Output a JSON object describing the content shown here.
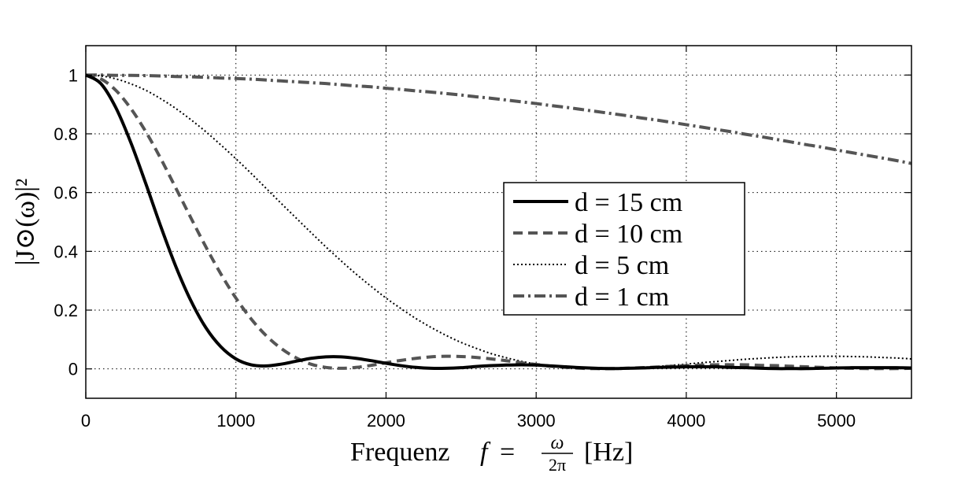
{
  "chart_data": {
    "type": "line",
    "xlabel": "Frequenz f = ω/2π [Hz]",
    "xlabel_parts": {
      "prefix": "Frequenz",
      "f": "f",
      "eq": "=",
      "num": "ω",
      "den": "2π",
      "unit": "[Hz]"
    },
    "ylabel": "|J⊙(ω)|²",
    "xlim": [
      0,
      5500
    ],
    "ylim": [
      -0.1,
      1.1
    ],
    "xticks": [
      0,
      1000,
      2000,
      3000,
      4000,
      5000
    ],
    "xtick_labels": [
      "0",
      "1000",
      "2000",
      "3000",
      "4000",
      "5000"
    ],
    "yticks": [
      0,
      0.2,
      0.4,
      0.6,
      0.8,
      1
    ],
    "ytick_labels": [
      "0",
      "0.2",
      "0.4",
      "0.6",
      "0.8",
      "1"
    ],
    "grid": true,
    "legend_position": "center-right",
    "x": [
      0,
      100,
      200,
      300,
      400,
      500,
      600,
      700,
      800,
      900,
      1000,
      1100,
      1200,
      1300,
      1400,
      1500,
      1600,
      1700,
      1800,
      1900,
      2000,
      2100,
      2200,
      2300,
      2400,
      2500,
      2600,
      2700,
      2800,
      2900,
      3000,
      3100,
      3200,
      3300,
      3400,
      3500,
      3600,
      3700,
      3800,
      3900,
      4000,
      4100,
      4200,
      4300,
      4400,
      4500,
      4600,
      4700,
      4800,
      4900,
      5000,
      5100,
      5200,
      5300,
      5400,
      5500
    ],
    "series": [
      {
        "name": "d = 15 cm",
        "style": "solid",
        "color": "#000000",
        "values": [
          1.0,
          0.971,
          0.889,
          0.77,
          0.63,
          0.484,
          0.348,
          0.232,
          0.14,
          0.075,
          0.034,
          0.014,
          0.01,
          0.016,
          0.026,
          0.036,
          0.041,
          0.041,
          0.036,
          0.028,
          0.019,
          0.011,
          0.005,
          0.002,
          0.002,
          0.004,
          0.008,
          0.011,
          0.013,
          0.014,
          0.013,
          0.01,
          0.007,
          0.004,
          0.002,
          0.001,
          0.002,
          0.003,
          0.005,
          0.006,
          0.007,
          0.007,
          0.007,
          0.005,
          0.004,
          0.002,
          0.001,
          0.001,
          0.001,
          0.002,
          0.003,
          0.004,
          0.004,
          0.004,
          0.004,
          0.003
        ]
      },
      {
        "name": "d = 10 cm",
        "style": "dashed",
        "color": "#555555",
        "values": [
          1.0,
          0.987,
          0.948,
          0.886,
          0.807,
          0.715,
          0.615,
          0.514,
          0.415,
          0.323,
          0.241,
          0.171,
          0.114,
          0.07,
          0.038,
          0.016,
          0.005,
          0.002,
          0.005,
          0.012,
          0.021,
          0.029,
          0.036,
          0.041,
          0.043,
          0.042,
          0.039,
          0.034,
          0.028,
          0.021,
          0.015,
          0.009,
          0.005,
          0.002,
          0.001,
          0.001,
          0.002,
          0.004,
          0.006,
          0.009,
          0.011,
          0.013,
          0.014,
          0.014,
          0.014,
          0.012,
          0.011,
          0.009,
          0.007,
          0.005,
          0.003,
          0.002,
          0.001,
          0.001,
          0.001,
          0.002
        ]
      },
      {
        "name": "d = 5 cm",
        "style": "dotted",
        "color": "#000000",
        "values": [
          1.0,
          0.997,
          0.987,
          0.97,
          0.948,
          0.919,
          0.886,
          0.848,
          0.807,
          0.762,
          0.715,
          0.666,
          0.615,
          0.564,
          0.514,
          0.464,
          0.415,
          0.368,
          0.323,
          0.281,
          0.241,
          0.205,
          0.171,
          0.141,
          0.114,
          0.09,
          0.07,
          0.052,
          0.038,
          0.026,
          0.016,
          0.009,
          0.005,
          0.002,
          0.001,
          0.001,
          0.002,
          0.005,
          0.008,
          0.012,
          0.016,
          0.021,
          0.025,
          0.029,
          0.033,
          0.036,
          0.039,
          0.041,
          0.042,
          0.043,
          0.043,
          0.042,
          0.041,
          0.039,
          0.037,
          0.034
        ]
      },
      {
        "name": "d = 1 cm",
        "style": "dashdot",
        "color": "#555555",
        "values": [
          1.0,
          1.0,
          0.999,
          0.999,
          0.998,
          0.997,
          0.995,
          0.994,
          0.992,
          0.99,
          0.988,
          0.986,
          0.983,
          0.98,
          0.977,
          0.974,
          0.971,
          0.967,
          0.963,
          0.96,
          0.955,
          0.951,
          0.946,
          0.942,
          0.937,
          0.932,
          0.926,
          0.921,
          0.915,
          0.909,
          0.903,
          0.896,
          0.89,
          0.883,
          0.876,
          0.869,
          0.862,
          0.854,
          0.847,
          0.839,
          0.831,
          0.823,
          0.815,
          0.807,
          0.798,
          0.79,
          0.781,
          0.772,
          0.763,
          0.755,
          0.745,
          0.736,
          0.727,
          0.718,
          0.709,
          0.699
        ]
      }
    ]
  }
}
